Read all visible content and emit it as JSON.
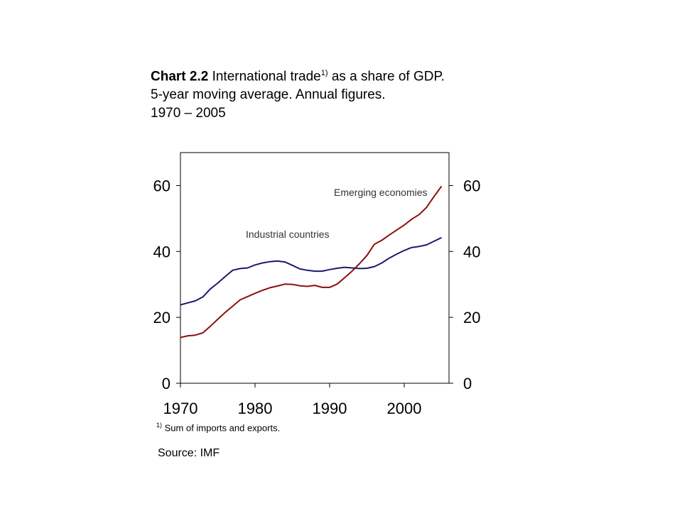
{
  "title": {
    "bold": "Chart 2.2",
    "text": " International trade",
    "sup": "1)",
    "text_after": " as a share of GDP.",
    "line2": "5-year moving average. Annual figures.",
    "line3": "1970 – 2005"
  },
  "footnote": {
    "sup": "1)",
    "text": " Sum of imports and exports."
  },
  "source": "Source: IMF",
  "colors": {
    "industrial": "#1a1a6e",
    "emerging": "#8b1010",
    "axis": "#000000"
  },
  "chart_data": {
    "type": "line",
    "x": [
      1970,
      1971,
      1972,
      1973,
      1974,
      1975,
      1976,
      1977,
      1978,
      1979,
      1980,
      1981,
      1982,
      1983,
      1984,
      1985,
      1986,
      1987,
      1988,
      1989,
      1990,
      1991,
      1992,
      1993,
      1994,
      1995,
      1996,
      1997,
      1998,
      1999,
      2000,
      2001,
      2002,
      2003,
      2004,
      2005
    ],
    "series": [
      {
        "name": "Industrial countries",
        "values": [
          23.8,
          24.4,
          25.0,
          26.2,
          28.6,
          30.4,
          32.4,
          34.3,
          34.8,
          35.0,
          35.9,
          36.5,
          36.9,
          37.1,
          36.8,
          35.8,
          34.7,
          34.3,
          34.0,
          34.0,
          34.5,
          34.9,
          35.2,
          35.0,
          34.8,
          34.9,
          35.4,
          36.5,
          38.0,
          39.2,
          40.3,
          41.2,
          41.5,
          42.0,
          43.1,
          44.2
        ]
      },
      {
        "name": "Emerging economies",
        "values": [
          13.9,
          14.4,
          14.6,
          15.3,
          17.3,
          19.4,
          21.5,
          23.4,
          25.3,
          26.3,
          27.3,
          28.2,
          29.0,
          29.5,
          30.1,
          30.0,
          29.6,
          29.4,
          29.7,
          29.1,
          29.1,
          30.1,
          32.0,
          34.0,
          36.3,
          38.8,
          42.2,
          43.4,
          45.0,
          46.5,
          48.0,
          49.8,
          51.2,
          53.4,
          56.7,
          59.8
        ]
      }
    ],
    "annotations": [
      "Industrial countries",
      "Emerging economies"
    ],
    "xticks": [
      "1970",
      "1980",
      "1990",
      "2000"
    ],
    "xtick_values": [
      1970,
      1980,
      1990,
      2000
    ],
    "yticks": [
      "0",
      "20",
      "40",
      "60"
    ],
    "ytick_values": [
      0,
      20,
      40,
      60
    ],
    "xlim": [
      1970,
      2006
    ],
    "ylim": [
      0,
      70
    ],
    "secondary_y_axis": true,
    "grid": false
  }
}
